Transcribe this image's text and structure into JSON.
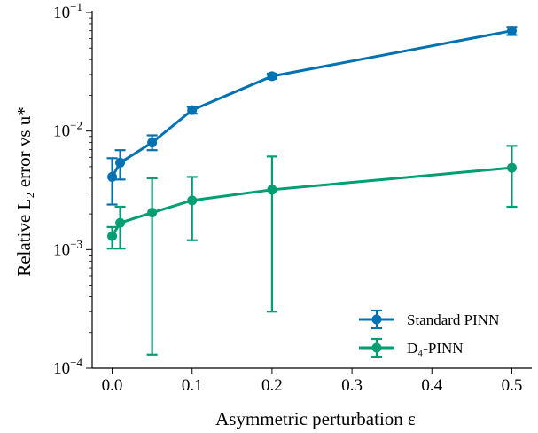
{
  "chart_data": {
    "type": "line",
    "title": "",
    "xlabel": "Asymmetric perturbation ε",
    "ylabel": "Relative L₂ error vs u*",
    "x_ticks": [
      0.0,
      0.1,
      0.2,
      0.3,
      0.4,
      0.5
    ],
    "x_tick_labels": [
      "0.0",
      "0.1",
      "0.2",
      "0.3",
      "0.4",
      "0.5"
    ],
    "xlim": [
      -0.025,
      0.525
    ],
    "y_scale": "log",
    "ylim": [
      0.0001,
      0.1
    ],
    "y_ticks": [
      0.0001,
      0.001,
      0.01,
      0.1
    ],
    "y_tick_labels": [
      {
        "base": "10",
        "exp": "−4"
      },
      {
        "base": "10",
        "exp": "−3"
      },
      {
        "base": "10",
        "exp": "−2"
      },
      {
        "base": "10",
        "exp": "−1"
      }
    ],
    "grid": false,
    "legend_position": "lower-right",
    "series": [
      {
        "name": "Standard PINN",
        "color": "#0072b2",
        "x": [
          0.0,
          0.01,
          0.05,
          0.1,
          0.2,
          0.5
        ],
        "y": [
          0.0041,
          0.0054,
          0.008,
          0.015,
          0.029,
          0.07
        ],
        "err_low": [
          0.0024,
          0.0039,
          0.0069,
          0.014,
          0.0275,
          0.0645
        ],
        "err_high": [
          0.0059,
          0.0069,
          0.0092,
          0.016,
          0.0305,
          0.0755
        ]
      },
      {
        "name": "D₄-PINN",
        "color": "#009e73",
        "x": [
          0.0,
          0.01,
          0.05,
          0.1,
          0.2,
          0.5
        ],
        "y": [
          0.0013,
          0.00168,
          0.00205,
          0.0026,
          0.0032,
          0.0049
        ],
        "err_low": [
          0.00102,
          0.00102,
          0.00013,
          0.0012,
          0.0003,
          0.0023
        ],
        "err_high": [
          0.00155,
          0.0023,
          0.004,
          0.0041,
          0.0061,
          0.0075
        ]
      }
    ]
  }
}
